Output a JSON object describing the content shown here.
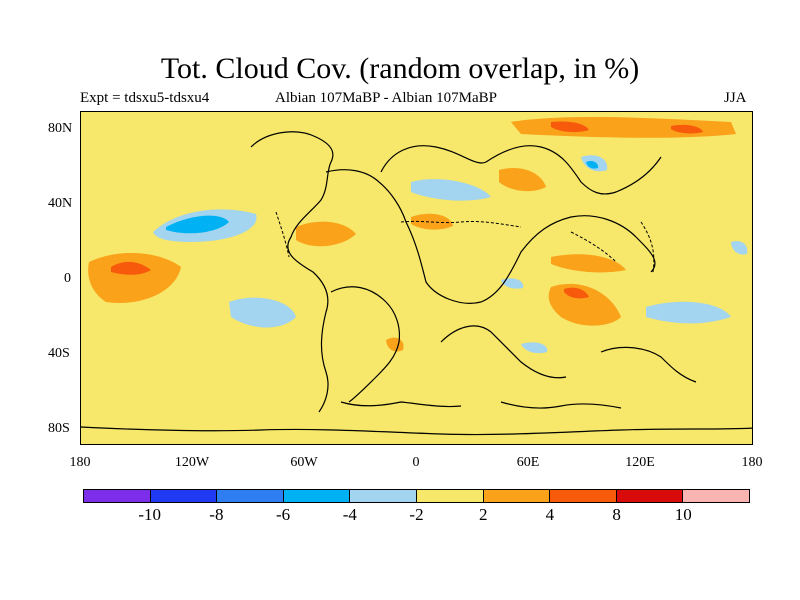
{
  "title": "Tot. Cloud Cov. (random overlap, in %)",
  "subtitle_left": "Expt = tdsxu5-tdsxu4",
  "subtitle_center": "Albian   107MaBP - Albian   107MaBP",
  "subtitle_right": "JJA",
  "y_ticks": [
    "80N",
    "40N",
    "0",
    "40S",
    "80S"
  ],
  "x_ticks": [
    "180",
    "120W",
    "60W",
    "0",
    "60E",
    "120E",
    "180"
  ],
  "colorbar": {
    "colors": [
      "#7d2ee8",
      "#1f3af2",
      "#2f7ef1",
      "#00b2f3",
      "#a3d4f0",
      "#f7e76a",
      "#f9a21a",
      "#f75a0a",
      "#d90a0a",
      "#f9b3b0"
    ],
    "labels": [
      "-10",
      "-8",
      "-6",
      "-4",
      "-2",
      "2",
      "4",
      "8",
      "10"
    ]
  }
}
